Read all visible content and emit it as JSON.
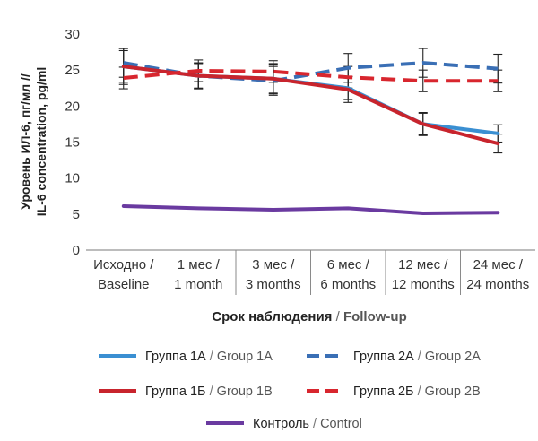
{
  "chart_data": {
    "type": "line",
    "categories": [
      {
        "ru": "Исходно /",
        "en": "Baseline"
      },
      {
        "ru": "1 мес /",
        "en": "1 month"
      },
      {
        "ru": "3 мес /",
        "en": "3 months"
      },
      {
        "ru": "6 мес /",
        "en": "6 months"
      },
      {
        "ru": "12 мес /",
        "en": "12 months"
      },
      {
        "ru": "24 мес /",
        "en": "24 months"
      }
    ],
    "ylabel_line1": "Уровень ИЛ-6, пг/мл //",
    "ylabel_line2": "IL-6 concentration, pg/ml",
    "xlabel_ru": "Срок наблюдения",
    "xlabel_sep": " / ",
    "xlabel_en": "Follow-up",
    "ylim": [
      0,
      30
    ],
    "yticks": [
      0,
      5,
      10,
      15,
      20,
      25,
      30
    ],
    "grid": false,
    "legend_position": "bottom",
    "series": [
      {
        "key": "g1a",
        "name_ru": "Группа 1А",
        "name_en": "Group 1A",
        "color": "#3a8fd2",
        "dash": false,
        "values": [
          25.5,
          24.2,
          23.8,
          22.5,
          17.5,
          16.2
        ],
        "errors": [
          2.2,
          1.7,
          2.0,
          1.6,
          1.5,
          1.2
        ]
      },
      {
        "key": "g2a",
        "name_ru": "Группа 2А",
        "name_en": "Group 2A",
        "color": "#3a6fb5",
        "dash": true,
        "values": [
          26.0,
          24.2,
          23.5,
          25.3,
          26.0,
          25.2
        ],
        "errors": [
          2.0,
          1.8,
          2.0,
          2.0,
          2.0,
          2.0
        ]
      },
      {
        "key": "g1b",
        "name_ru": "Группа 1Б",
        "name_en": "Group 1B",
        "color": "#c8242d",
        "dash": false,
        "values": [
          25.5,
          24.2,
          23.8,
          22.3,
          17.5,
          14.8
        ],
        "errors": [
          2.5,
          1.8,
          2.1,
          1.8,
          1.6,
          1.3
        ]
      },
      {
        "key": "g2b",
        "name_ru": "Группа 2Б",
        "name_en": "Group 2B",
        "color": "#d8262e",
        "dash": true,
        "values": [
          23.9,
          24.9,
          24.8,
          24.0,
          23.5,
          23.5
        ],
        "errors": [
          1.5,
          1.5,
          1.5,
          1.5,
          1.5,
          1.5
        ]
      },
      {
        "key": "ctrl",
        "name_ru": "Контроль",
        "name_en": "Control",
        "color": "#6a3aa0",
        "dash": false,
        "values": [
          6.1,
          5.8,
          5.6,
          5.8,
          5.1,
          5.2
        ],
        "errors": []
      }
    ],
    "legend_separator": " / "
  }
}
